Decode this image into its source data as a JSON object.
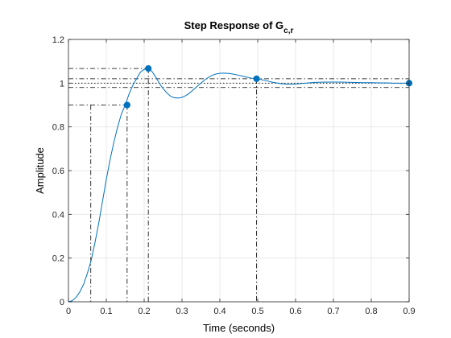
{
  "chart_data": {
    "type": "line",
    "title": "Step Response of G",
    "title_subscript": "c,r",
    "xlabel": "Time (seconds)",
    "ylabel": "Amplitude",
    "xlim": [
      0,
      0.9
    ],
    "ylim": [
      0,
      1.2
    ],
    "x_ticks": [
      0,
      0.1,
      0.2,
      0.3,
      0.4,
      0.5,
      0.6,
      0.7,
      0.8,
      0.9
    ],
    "y_ticks": [
      0,
      0.2,
      0.4,
      0.6,
      0.8,
      1,
      1.2
    ],
    "x_tick_labels": [
      "0",
      "0.1",
      "0.2",
      "0.3",
      "0.4",
      "0.5",
      "0.6",
      "0.7",
      "0.8",
      "0.9"
    ],
    "y_tick_labels": [
      "0",
      "0.2",
      "0.4",
      "0.6",
      "0.8",
      "1",
      "1.2"
    ],
    "grid": true,
    "series": [
      {
        "color": "#0072bd",
        "x": [
          0,
          0.01,
          0.02,
          0.03,
          0.04,
          0.05,
          0.06,
          0.07,
          0.08,
          0.09,
          0.1,
          0.11,
          0.12,
          0.13,
          0.14,
          0.15,
          0.16,
          0.17,
          0.18,
          0.19,
          0.2,
          0.21,
          0.22,
          0.23,
          0.24,
          0.25,
          0.26,
          0.27,
          0.28,
          0.29,
          0.3,
          0.31,
          0.32,
          0.33,
          0.34,
          0.35,
          0.36,
          0.37,
          0.38,
          0.39,
          0.4,
          0.41,
          0.42,
          0.43,
          0.44,
          0.45,
          0.46,
          0.47,
          0.48,
          0.49,
          0.5,
          0.52,
          0.54,
          0.56,
          0.58,
          0.6,
          0.62,
          0.64,
          0.66,
          0.68,
          0.7,
          0.72,
          0.74,
          0.76,
          0.78,
          0.8,
          0.82,
          0.84,
          0.86,
          0.88,
          0.9
        ],
        "y": [
          0,
          0.005,
          0.02,
          0.045,
          0.08,
          0.13,
          0.19,
          0.27,
          0.36,
          0.46,
          0.56,
          0.65,
          0.73,
          0.8,
          0.86,
          0.9,
          0.95,
          0.99,
          1.02,
          1.05,
          1.063,
          1.067,
          1.055,
          1.03,
          1.0,
          0.975,
          0.955,
          0.94,
          0.933,
          0.932,
          0.935,
          0.943,
          0.955,
          0.97,
          0.985,
          1.0,
          1.015,
          1.027,
          1.036,
          1.042,
          1.045,
          1.046,
          1.045,
          1.043,
          1.04,
          1.036,
          1.032,
          1.028,
          1.024,
          1.021,
          1.02,
          1.012,
          1.004,
          0.998,
          0.995,
          0.996,
          0.999,
          1.002,
          1.004,
          1.005,
          1.005,
          1.005,
          1.004,
          1.003,
          1.002,
          1.002,
          1.001,
          1.001,
          1.0,
          1.0,
          1.0
        ]
      }
    ],
    "characteristic_points": [
      {
        "x": 0.155,
        "y": 0.9
      },
      {
        "x": 0.211,
        "y": 1.067
      },
      {
        "x": 0.497,
        "y": 1.02
      },
      {
        "x": 0.9,
        "y": 1.0
      }
    ],
    "reference_lines": {
      "horizontal_dashdot": [
        0.9,
        0.98,
        1.02,
        1.067
      ],
      "horizontal_dotted": [
        1.0
      ],
      "vertical_dashdot": [
        0.059,
        0.155,
        0.211,
        0.497
      ]
    }
  }
}
